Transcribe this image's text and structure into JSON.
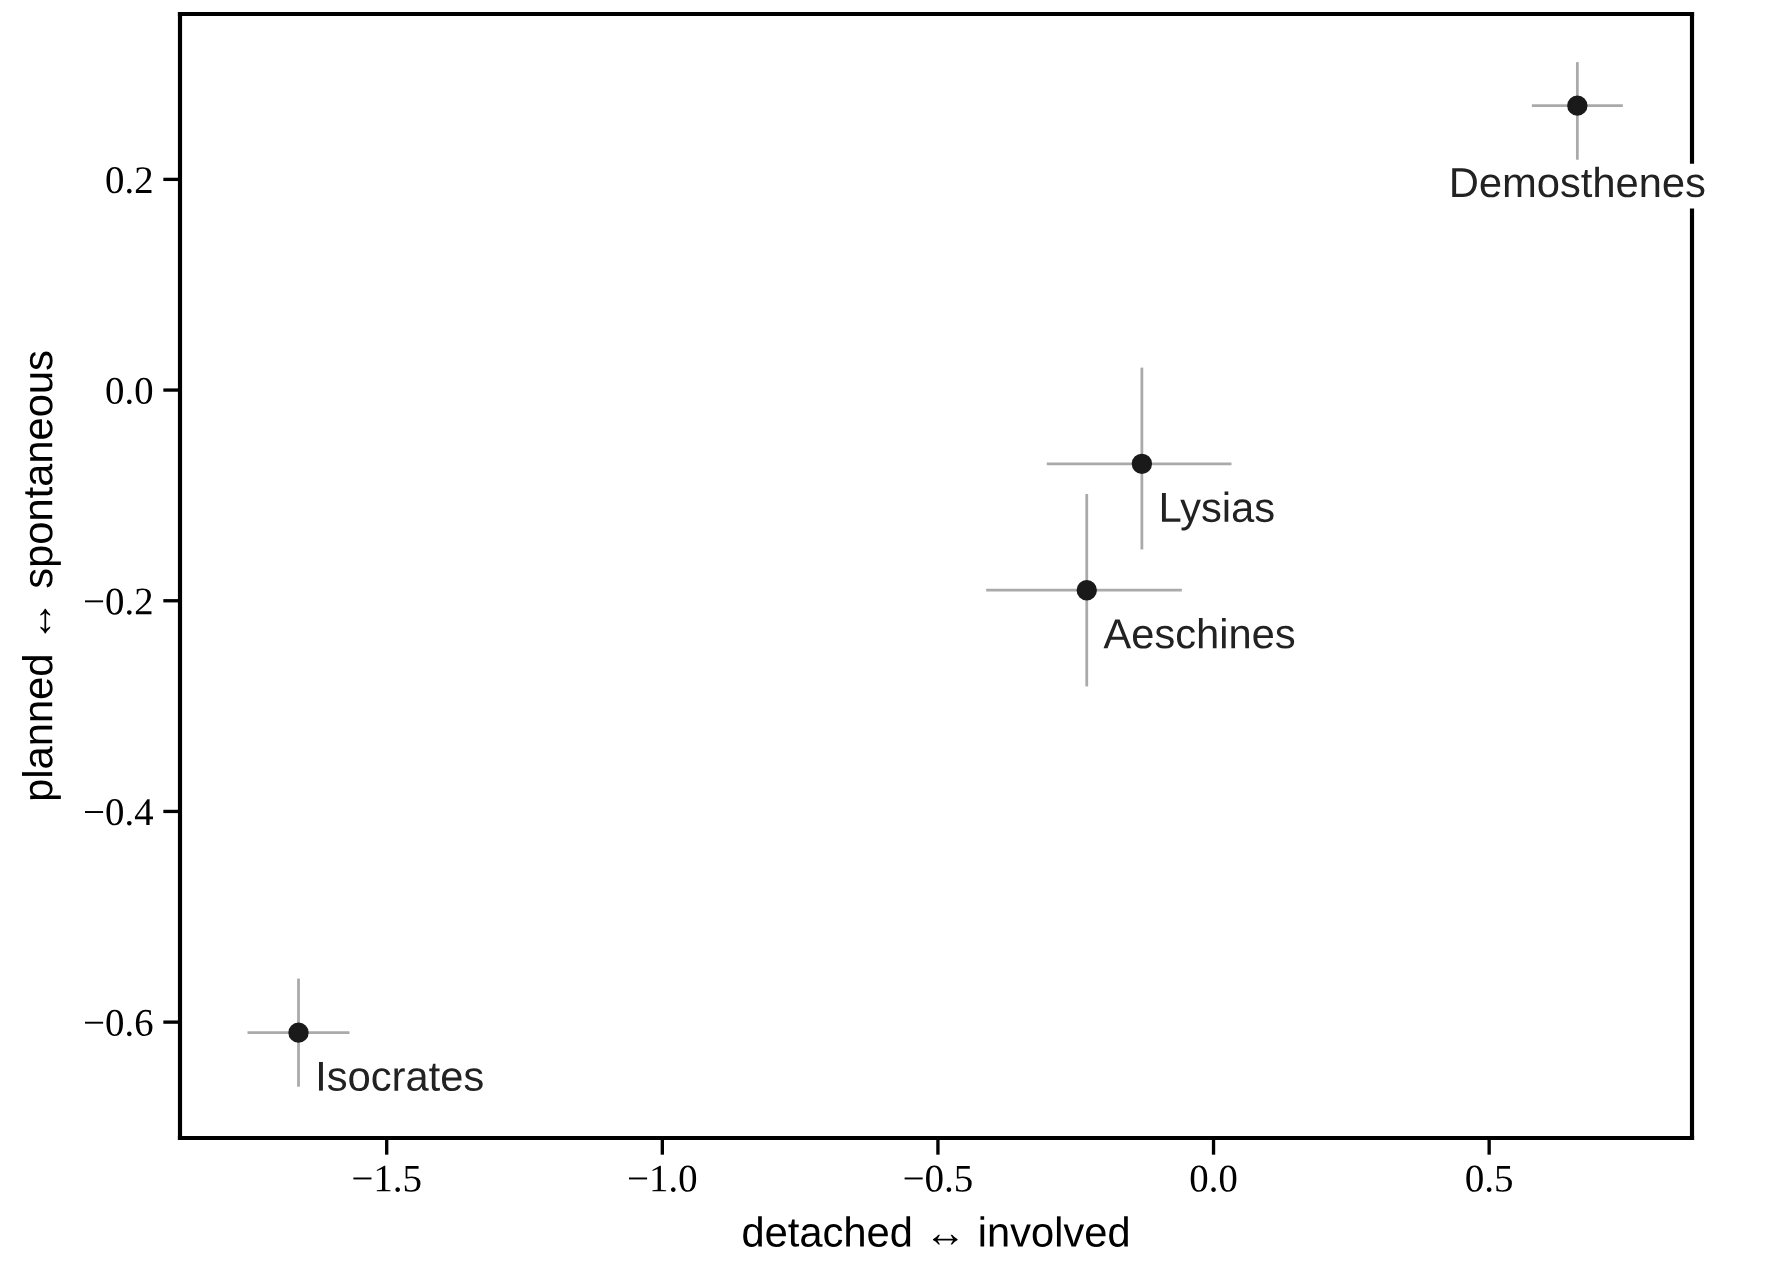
{
  "chart_data": {
    "type": "scatter",
    "xlabel": "detached ↔ involved",
    "ylabel": "planned ↔ spontaneous",
    "x": [
      0.66,
      -0.13,
      -0.23,
      -1.66
    ],
    "values": [
      0.27,
      -0.07,
      -0.19,
      -0.61
    ],
    "xerrors": [
      [
        0.58,
        0.74
      ],
      [
        -0.3,
        0.03
      ],
      [
        -0.41,
        -0.06
      ],
      [
        -1.75,
        -1.57
      ]
    ],
    "errors": [
      [
        0.22,
        0.31
      ],
      [
        -0.15,
        0.02
      ],
      [
        -0.28,
        -0.1
      ],
      [
        -0.66,
        -0.56
      ]
    ],
    "color": "#1a1a1a",
    "marker": "circle",
    "grid": false,
    "legend": false,
    "annotations": [
      {
        "text": "Demosthenes",
        "x": 0.66,
        "y": 0.27
      },
      {
        "text": "Lysias",
        "x": -0.13,
        "y": -0.07
      },
      {
        "text": "Aeschines",
        "x": -0.23,
        "y": -0.19
      },
      {
        "text": "Isocrates",
        "x": -1.66,
        "y": -0.61
      }
    ],
    "xlim": [
      -1.875,
      0.868
    ],
    "ylim": [
      -0.71,
      0.357
    ],
    "xticks": [
      {
        "value": -1.5,
        "label": "−1.5"
      },
      {
        "value": -1.0,
        "label": "−1.0"
      },
      {
        "value": -0.5,
        "label": "−0.5"
      },
      {
        "value": 0.0,
        "label": "0.0"
      },
      {
        "value": 0.5,
        "label": "0.5"
      }
    ],
    "yticks": [
      {
        "value": -0.6,
        "label": "−0.6"
      },
      {
        "value": -0.4,
        "label": "−0.4"
      },
      {
        "value": -0.2,
        "label": "−0.2"
      },
      {
        "value": 0.0,
        "label": "0.0"
      },
      {
        "value": 0.2,
        "label": "0.2"
      }
    ]
  }
}
